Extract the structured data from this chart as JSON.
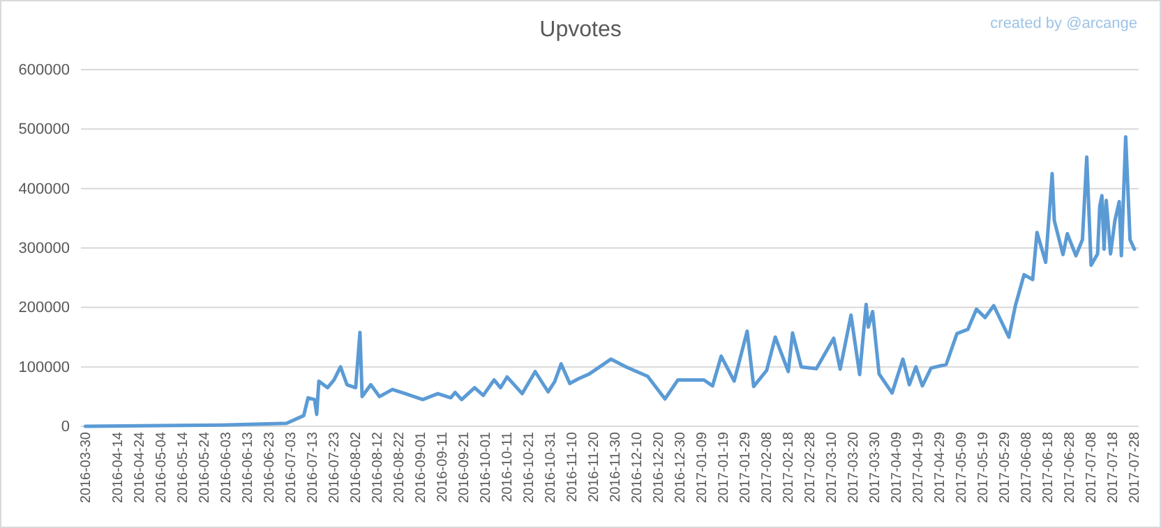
{
  "chart_data": {
    "type": "line",
    "title": "Upvotes",
    "annotations": [
      "created by @arcange"
    ],
    "x": [
      "2016-03-30",
      "2016-06-01",
      "2016-07-01",
      "2016-07-09",
      "2016-07-11",
      "2016-07-14",
      "2016-07-15",
      "2016-07-16",
      "2016-07-20",
      "2016-07-23",
      "2016-07-26",
      "2016-07-29",
      "2016-08-02",
      "2016-08-04",
      "2016-08-05",
      "2016-08-09",
      "2016-08-13",
      "2016-08-19",
      "2016-08-25",
      "2016-09-02",
      "2016-09-09",
      "2016-09-15",
      "2016-09-17",
      "2016-09-20",
      "2016-09-26",
      "2016-09-30",
      "2016-10-05",
      "2016-10-08",
      "2016-10-11",
      "2016-10-18",
      "2016-10-24",
      "2016-10-30",
      "2016-11-02",
      "2016-11-05",
      "2016-11-09",
      "2016-11-13",
      "2016-11-18",
      "2016-11-28",
      "2016-12-05",
      "2016-12-15",
      "2016-12-23",
      "2016-12-29",
      "2017-01-10",
      "2017-01-14",
      "2017-01-18",
      "2017-01-24",
      "2017-01-30",
      "2017-02-02",
      "2017-02-08",
      "2017-02-12",
      "2017-02-18",
      "2017-02-20",
      "2017-02-24",
      "2017-03-03",
      "2017-03-11",
      "2017-03-14",
      "2017-03-19",
      "2017-03-23",
      "2017-03-26",
      "2017-03-27",
      "2017-03-29",
      "2017-04-01",
      "2017-04-07",
      "2017-04-12",
      "2017-04-15",
      "2017-04-18",
      "2017-04-21",
      "2017-04-25",
      "2017-05-02",
      "2017-05-07",
      "2017-05-12",
      "2017-05-16",
      "2017-05-20",
      "2017-05-24",
      "2017-05-31",
      "2017-06-03",
      "2017-06-07",
      "2017-06-11",
      "2017-06-13",
      "2017-06-17",
      "2017-06-20",
      "2017-06-21",
      "2017-06-25",
      "2017-06-27",
      "2017-07-01",
      "2017-07-04",
      "2017-07-06",
      "2017-07-08",
      "2017-07-11",
      "2017-07-12",
      "2017-07-13",
      "2017-07-14",
      "2017-07-15",
      "2017-07-17",
      "2017-07-19",
      "2017-07-21",
      "2017-07-22",
      "2017-07-24",
      "2017-07-26",
      "2017-07-28"
    ],
    "series": [
      {
        "color": "#5b9bd5",
        "values": [
          0,
          2000,
          5000,
          18000,
          48000,
          45000,
          20000,
          76000,
          65000,
          78000,
          100000,
          70000,
          65000,
          158000,
          50000,
          70000,
          50000,
          62000,
          55000,
          45000,
          55000,
          48000,
          57000,
          45000,
          65000,
          52000,
          78000,
          65000,
          83000,
          55000,
          92000,
          58000,
          75000,
          105000,
          72000,
          80000,
          88000,
          113000,
          100000,
          84000,
          46000,
          78000,
          78000,
          68000,
          118000,
          76000,
          160000,
          67000,
          94000,
          150000,
          92000,
          157000,
          100000,
          97000,
          148000,
          96000,
          187000,
          87000,
          205000,
          167000,
          193000,
          88000,
          56000,
          113000,
          70000,
          100000,
          68000,
          98000,
          104000,
          156000,
          163000,
          197000,
          183000,
          203000,
          150000,
          203000,
          255000,
          247000,
          326000,
          276000,
          425000,
          346000,
          289000,
          324000,
          287000,
          314000,
          453000,
          271000,
          290000,
          370000,
          388000,
          298000,
          380000,
          290000,
          346000,
          378000,
          287000,
          487000,
          314000,
          298000
        ]
      }
    ],
    "xlim": [
      "2016-03-28",
      "2017-07-30"
    ],
    "xticks": [
      "2016-03-30",
      "2016-04-14",
      "2016-04-24",
      "2016-05-04",
      "2016-05-14",
      "2016-05-24",
      "2016-06-03",
      "2016-06-13",
      "2016-06-23",
      "2016-07-03",
      "2016-07-13",
      "2016-07-23",
      "2016-08-02",
      "2016-08-12",
      "2016-08-22",
      "2016-09-01",
      "2016-09-11",
      "2016-09-21",
      "2016-10-01",
      "2016-10-11",
      "2016-10-21",
      "2016-10-31",
      "2016-11-10",
      "2016-11-20",
      "2016-11-30",
      "2016-12-10",
      "2016-12-20",
      "2016-12-30",
      "2017-01-09",
      "2017-01-19",
      "2017-01-29",
      "2017-02-08",
      "2017-02-18",
      "2017-02-28",
      "2017-03-10",
      "2017-03-20",
      "2017-03-30",
      "2017-04-09",
      "2017-04-19",
      "2017-04-29",
      "2017-05-09",
      "2017-05-19",
      "2017-05-29",
      "2017-06-08",
      "2017-06-18",
      "2017-06-28",
      "2017-07-08",
      "2017-07-18",
      "2017-07-28"
    ],
    "ylim": [
      0,
      600000
    ],
    "yticks": [
      0,
      100000,
      200000,
      300000,
      400000,
      500000,
      600000
    ],
    "grid": "y",
    "line_style": "solid",
    "marker": "none"
  }
}
